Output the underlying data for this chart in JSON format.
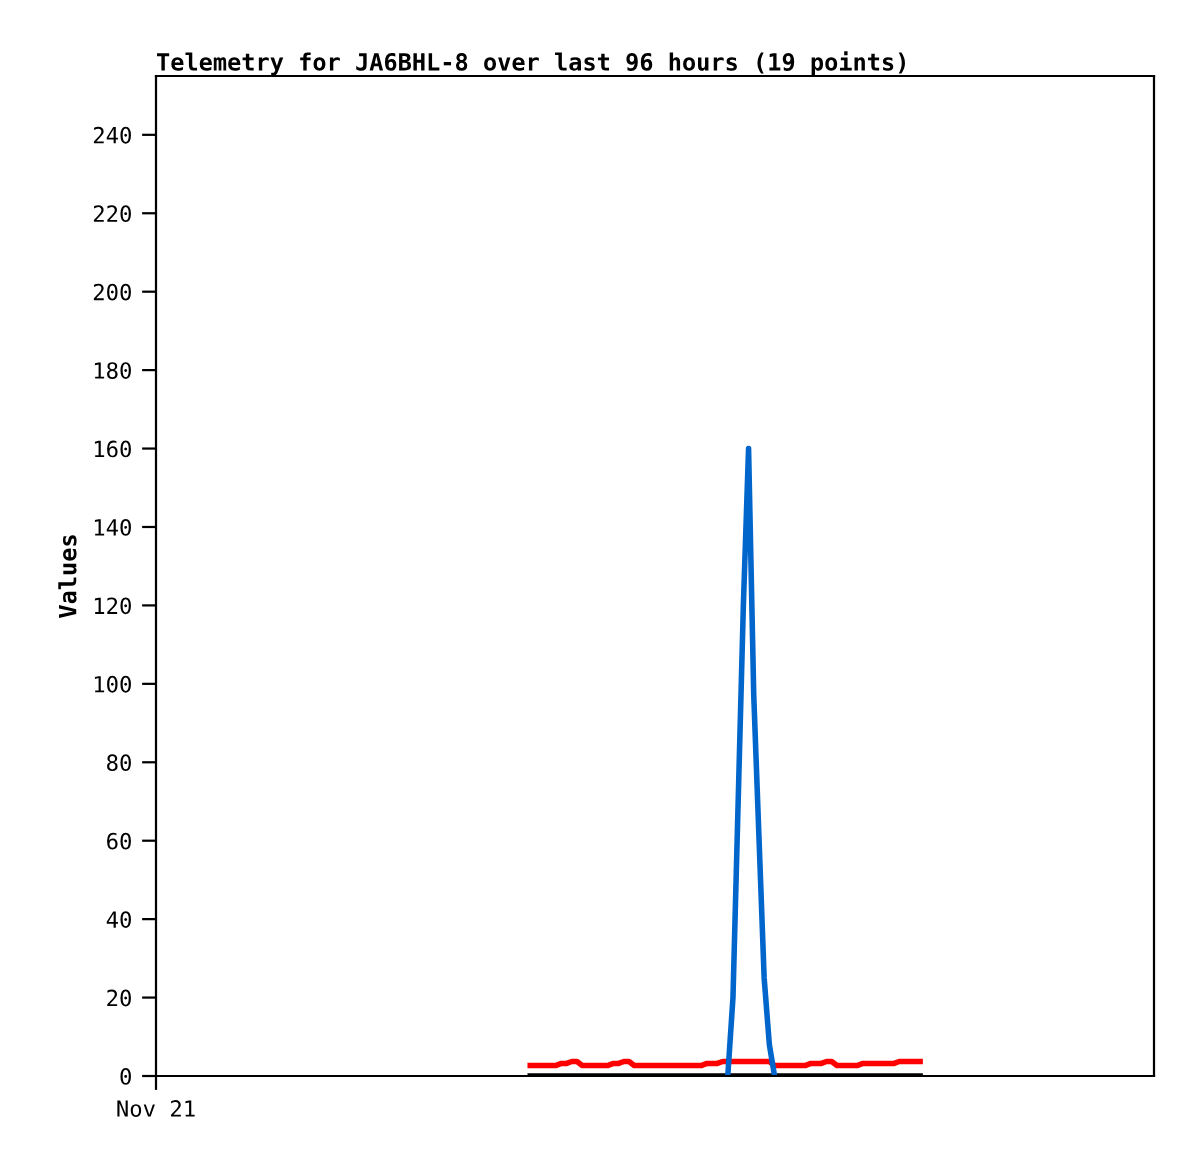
{
  "chart_data": {
    "type": "line",
    "title": "Telemetry for JA6BHL-8 over last 96 hours (19 points)",
    "ylabel": "Values",
    "ylim": [
      0,
      255
    ],
    "yticks": [
      0,
      20,
      40,
      60,
      80,
      100,
      120,
      140,
      160,
      180,
      200,
      220,
      240
    ],
    "grid": false,
    "legend": false,
    "categories": [
      "Nov 21",
      null,
      null,
      null,
      null,
      null,
      null,
      null,
      null,
      null,
      null,
      null,
      null,
      null,
      null,
      null,
      null,
      null,
      null,
      null,
      null,
      null,
      null,
      null,
      null,
      null,
      null,
      null,
      null,
      null,
      null,
      null,
      null,
      null,
      null,
      null,
      null,
      null,
      null,
      null,
      null,
      null,
      null,
      null,
      null,
      null,
      null,
      null,
      null,
      null,
      null,
      null,
      null,
      null,
      null,
      null,
      null,
      null,
      null,
      null,
      null,
      null,
      null,
      null,
      null,
      null,
      null,
      null,
      null,
      null,
      null,
      null,
      null,
      null,
      null,
      null,
      null,
      null,
      null,
      null,
      null,
      null,
      null,
      null,
      null,
      null,
      null,
      null,
      null,
      null,
      null,
      null,
      null,
      null,
      null,
      null,
      null,
      null,
      null,
      null,
      null,
      null,
      null,
      null,
      null,
      null,
      null,
      null,
      null,
      null,
      null,
      null,
      null,
      null,
      null,
      null,
      null,
      null,
      null,
      null,
      null,
      null,
      null,
      null,
      null,
      null,
      null,
      null,
      null,
      null,
      null,
      null,
      null,
      null,
      null,
      null,
      null,
      null,
      null,
      null,
      null,
      null,
      null,
      null,
      null,
      null,
      null,
      null,
      null,
      null,
      null,
      null,
      null,
      null,
      null,
      null,
      null,
      null,
      null,
      null,
      null,
      null,
      null,
      null,
      null,
      null,
      null,
      null,
      null,
      null,
      null,
      null,
      null,
      null,
      null,
      null,
      null,
      null,
      null,
      null,
      null,
      null,
      null,
      null,
      null,
      null,
      null,
      null,
      null,
      null,
      null,
      null,
      null
    ],
    "series": [
      {
        "color": "#000000",
        "values": [
          null,
          null,
          null,
          null,
          null,
          null,
          null,
          null,
          null,
          null,
          null,
          null,
          null,
          null,
          null,
          null,
          null,
          null,
          null,
          null,
          null,
          null,
          null,
          null,
          null,
          null,
          null,
          null,
          null,
          null,
          null,
          null,
          null,
          null,
          null,
          null,
          null,
          null,
          null,
          null,
          null,
          null,
          null,
          null,
          null,
          null,
          null,
          null,
          null,
          null,
          null,
          null,
          null,
          null,
          null,
          null,
          null,
          null,
          null,
          null,
          null,
          null,
          null,
          null,
          null,
          null,
          null,
          null,
          null,
          null,
          null,
          null,
          0,
          0,
          0,
          0,
          0,
          0,
          0,
          0,
          0,
          0,
          0,
          0,
          0,
          0,
          0,
          0,
          0,
          0,
          0,
          0,
          0,
          0,
          0,
          0,
          0,
          0,
          0,
          0,
          0,
          0,
          0,
          0,
          0,
          0,
          0,
          0,
          0,
          0,
          0,
          0,
          0,
          0,
          0,
          0,
          0,
          0,
          0,
          0,
          0,
          0,
          0,
          0,
          0,
          0,
          0,
          0,
          0,
          0,
          0,
          0,
          0,
          0,
          0,
          0,
          0,
          0,
          0,
          0,
          0,
          0,
          0,
          0,
          0,
          0,
          0,
          0,
          null,
          null,
          null,
          null,
          null,
          null,
          null,
          null,
          null,
          null,
          null,
          null,
          null,
          null,
          null,
          null,
          null,
          null,
          null,
          null,
          null,
          null,
          null,
          null,
          null,
          null,
          null,
          null,
          null,
          null,
          null,
          null,
          null,
          null,
          null,
          null,
          null,
          null,
          null,
          null,
          null,
          null,
          null,
          null,
          null
        ]
      },
      {
        "color": "#ff0000",
        "values": [
          null,
          null,
          null,
          null,
          null,
          null,
          null,
          null,
          null,
          null,
          null,
          null,
          null,
          null,
          null,
          null,
          null,
          null,
          null,
          null,
          null,
          null,
          null,
          null,
          null,
          null,
          null,
          null,
          null,
          null,
          null,
          null,
          null,
          null,
          null,
          null,
          null,
          null,
          null,
          null,
          null,
          null,
          null,
          null,
          null,
          null,
          null,
          null,
          null,
          null,
          null,
          null,
          null,
          null,
          null,
          null,
          null,
          null,
          null,
          null,
          null,
          null,
          null,
          null,
          null,
          null,
          null,
          null,
          null,
          null,
          null,
          null,
          2.7,
          2.7,
          2.7,
          2.7,
          2.7,
          2.7,
          3.2,
          3.2,
          3.7,
          3.7,
          2.7,
          2.7,
          2.7,
          2.7,
          2.7,
          2.7,
          3.2,
          3.2,
          3.7,
          3.7,
          2.7,
          2.7,
          2.7,
          2.7,
          2.7,
          2.7,
          2.7,
          2.7,
          2.7,
          2.7,
          2.7,
          2.7,
          2.7,
          2.7,
          3.2,
          3.2,
          3.2,
          3.7,
          3.7,
          3.7,
          3.7,
          3.7,
          3.7,
          3.7,
          3.7,
          3.7,
          3.7,
          2.7,
          2.7,
          2.7,
          2.7,
          2.7,
          2.7,
          2.7,
          3.2,
          3.2,
          3.2,
          3.7,
          3.7,
          2.7,
          2.7,
          2.7,
          2.7,
          2.7,
          3.2,
          3.2,
          3.2,
          3.2,
          3.2,
          3.2,
          3.2,
          3.7,
          3.7,
          3.7,
          3.7,
          3.7,
          null,
          null,
          null,
          null,
          null,
          null,
          null,
          null,
          null,
          null,
          null,
          null,
          null,
          null,
          null,
          null,
          null,
          null,
          null,
          null,
          null,
          null,
          null,
          null,
          null,
          null,
          null,
          null,
          null,
          null,
          null,
          null,
          null,
          null,
          null,
          null,
          null,
          null,
          null,
          null,
          null,
          null,
          null,
          null,
          null
        ]
      },
      {
        "color": "#0066cc",
        "values": [
          null,
          null,
          null,
          null,
          null,
          null,
          null,
          null,
          null,
          null,
          null,
          null,
          null,
          null,
          null,
          null,
          null,
          null,
          null,
          null,
          null,
          null,
          null,
          null,
          null,
          null,
          null,
          null,
          null,
          null,
          null,
          null,
          null,
          null,
          null,
          null,
          null,
          null,
          null,
          null,
          null,
          null,
          null,
          null,
          null,
          null,
          null,
          null,
          null,
          null,
          null,
          null,
          null,
          null,
          null,
          null,
          null,
          null,
          null,
          null,
          null,
          null,
          null,
          null,
          null,
          null,
          null,
          null,
          null,
          null,
          null,
          null,
          null,
          null,
          null,
          null,
          null,
          null,
          null,
          null,
          null,
          null,
          null,
          null,
          null,
          null,
          null,
          null,
          null,
          null,
          null,
          null,
          null,
          null,
          null,
          null,
          null,
          null,
          null,
          null,
          null,
          null,
          null,
          null,
          null,
          null,
          null,
          null,
          null,
          null,
          0,
          20,
          70,
          120,
          160,
          97,
          61,
          25,
          8,
          0,
          null,
          null,
          null,
          null,
          null,
          null,
          null,
          null,
          null,
          null,
          null,
          null,
          null,
          null,
          null,
          null,
          null,
          null,
          null,
          null,
          null,
          null,
          null,
          null,
          null,
          null,
          null,
          null,
          null,
          null,
          null,
          null,
          null,
          null,
          null,
          null,
          null,
          null,
          null,
          null,
          null,
          null,
          null,
          null,
          null,
          null,
          null,
          null,
          null,
          null,
          null,
          null,
          null,
          null,
          null,
          null,
          null,
          null,
          null,
          null,
          null,
          null,
          null,
          null,
          null,
          null,
          null,
          null,
          null,
          null,
          null,
          null,
          null
        ]
      }
    ]
  }
}
